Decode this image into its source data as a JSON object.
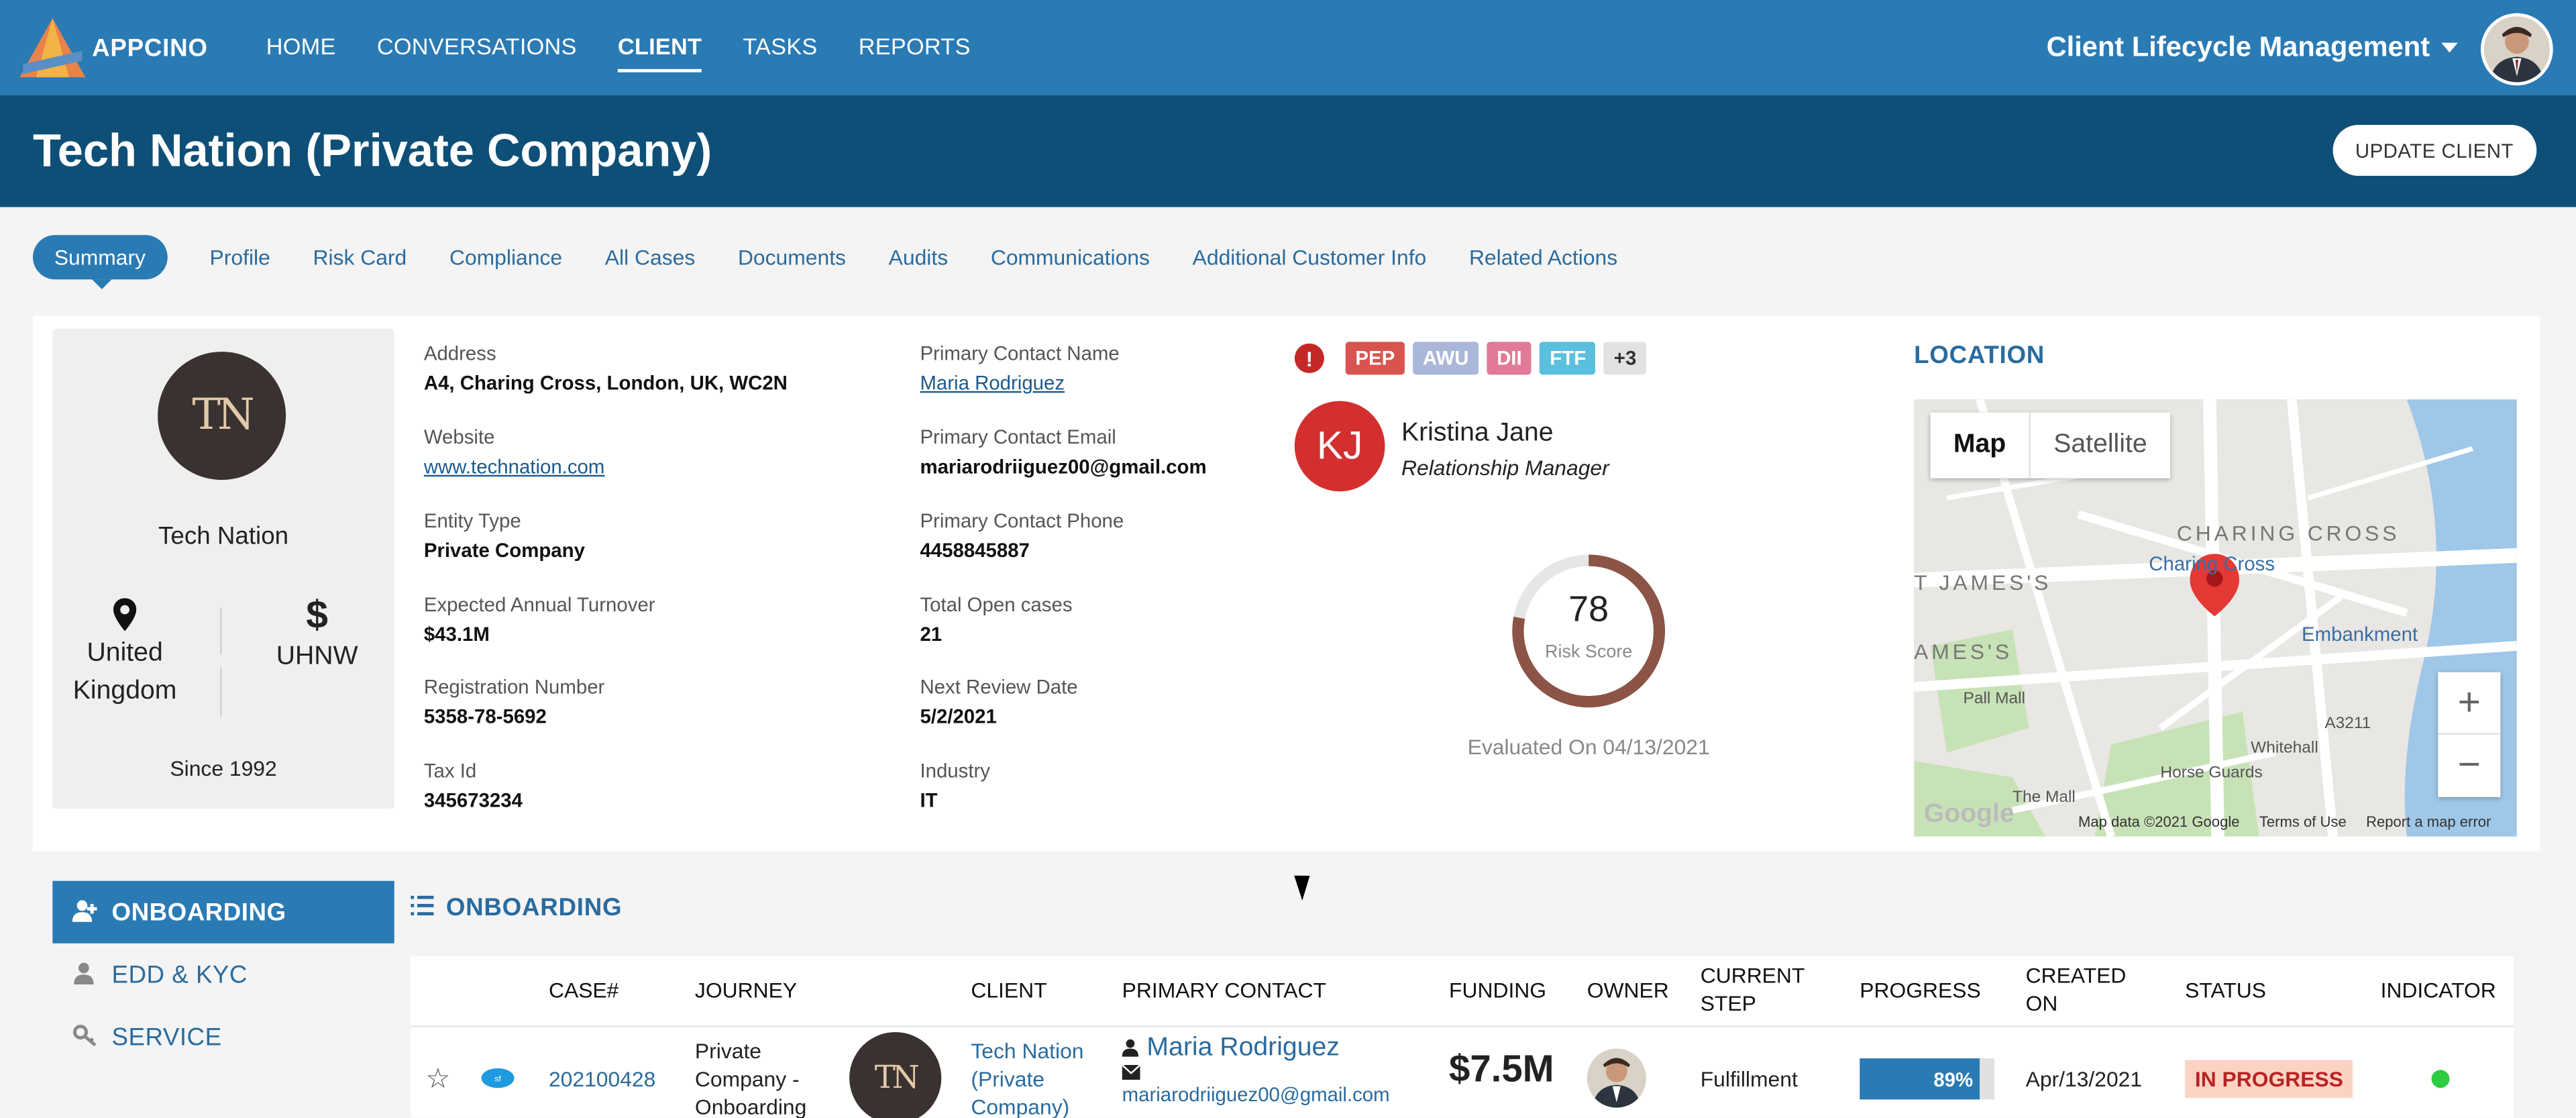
{
  "app": {
    "logo_text": "APPCINO",
    "nav": [
      "HOME",
      "CONVERSATIONS",
      "CLIENT",
      "TASKS",
      "REPORTS"
    ],
    "active_nav": "CLIENT",
    "switcher_label": "Client Lifecycle Management"
  },
  "header": {
    "title": "Tech Nation (Private Company)",
    "update_button": "UPDATE CLIENT"
  },
  "tabs": [
    {
      "label": "Summary",
      "active": true
    },
    {
      "label": "Profile"
    },
    {
      "label": "Risk Card"
    },
    {
      "label": "Compliance"
    },
    {
      "label": "All Cases"
    },
    {
      "label": "Documents"
    },
    {
      "label": "Audits"
    },
    {
      "label": "Communications"
    },
    {
      "label": "Additional Customer Info"
    },
    {
      "label": "Related Actions"
    }
  ],
  "client": {
    "logo_text": "TN",
    "name": "Tech Nation",
    "location": "United Kingdom",
    "location_line1": "United",
    "location_line2": "Kingdom",
    "segment_symbol": "$",
    "segment": "UHNW",
    "since": "Since 1992"
  },
  "details_left": [
    {
      "label": "Address",
      "value": "A4, Charing Cross, London, UK, WC2N"
    },
    {
      "label": "Website",
      "value": "www.technation.com",
      "link": true
    },
    {
      "label": "Entity Type",
      "value": "Private Company"
    },
    {
      "label": "Expected Annual Turnover",
      "value": "$43.1M"
    },
    {
      "label": "Registration Number",
      "value": "5358-78-5692"
    },
    {
      "label": "Tax Id",
      "value": "345673234"
    }
  ],
  "details_right": [
    {
      "label": "Primary Contact Name",
      "value": "Maria Rodriguez",
      "link": true
    },
    {
      "label": "Primary Contact Email",
      "value": "mariarodriiguez00@gmail.com"
    },
    {
      "label": "Primary Contact Phone",
      "value": "4458845887"
    },
    {
      "label": "Total Open cases",
      "value": "21"
    },
    {
      "label": "Next Review Date",
      "value": "5/2/2021"
    },
    {
      "label": "Industry",
      "value": "IT"
    }
  ],
  "flags": {
    "alert_symbol": "!",
    "badges": [
      {
        "text": "PEP",
        "color": "#d9534f"
      },
      {
        "text": "AWU",
        "color": "#a9b7d9"
      },
      {
        "text": "DII",
        "color": "#e07a96"
      },
      {
        "text": "FTF",
        "color": "#5bc0de"
      },
      {
        "text": "+3",
        "color": "#e2e2e2"
      }
    ]
  },
  "relationship_manager": {
    "initials": "KJ",
    "name": "Kristina Jane",
    "role": "Relationship Manager"
  },
  "risk": {
    "score": "78",
    "label": "Risk Score",
    "fraction": 0.78,
    "evaluated": "Evaluated On 04/13/2021"
  },
  "location_panel": {
    "title": "LOCATION",
    "map_btn": "Map",
    "satellite_btn": "Satellite",
    "labels": [
      "CHARING CROSS",
      "T JAMES'S",
      "AMES'S",
      "Charing Cross",
      "Embankment",
      "Pall Mall",
      "Horse Guards",
      "The Mall",
      "Whitehall",
      "A3211"
    ],
    "google": "Google",
    "footer": [
      "Map data ©2021 Google",
      "Terms of Use",
      "Report a map error"
    ],
    "zoom_in": "+",
    "zoom_out": "−"
  },
  "side_nav": [
    {
      "label": "ONBOARDING",
      "icon": "user-plus-icon",
      "active": true
    },
    {
      "label": "EDD & KYC",
      "icon": "user-icon"
    },
    {
      "label": "SERVICE",
      "icon": "key-icon"
    }
  ],
  "onboarding": {
    "title": "ONBOARDING",
    "columns": [
      "CASE#",
      "JOURNEY",
      "CLIENT",
      "PRIMARY CONTACT",
      "FUNDING",
      "OWNER",
      "CURRENT STEP",
      "PROGRESS",
      "CREATED ON",
      "STATUS",
      "INDICATOR"
    ],
    "rows": [
      {
        "case": "202100428",
        "journey": "Private Company - Onboarding",
        "journey_l1": "Private",
        "journey_l2": "Company -",
        "journey_l3": "Onboarding",
        "client": "Tech Nation (Private Company)",
        "client_l1": "Tech Nation",
        "client_l2": "(Private",
        "client_l3": "Company)",
        "contact_name": "Maria Rodriguez",
        "contact_email": "mariarodriiguez00@gmail.com",
        "funding": "$7.5M",
        "current_step": "Fulfillment",
        "progress": "89%",
        "progress_value": 0.89,
        "created_on": "Apr/13/2021",
        "status": "IN PROGRESS",
        "indicator_color": "#2ecc40"
      }
    ]
  }
}
